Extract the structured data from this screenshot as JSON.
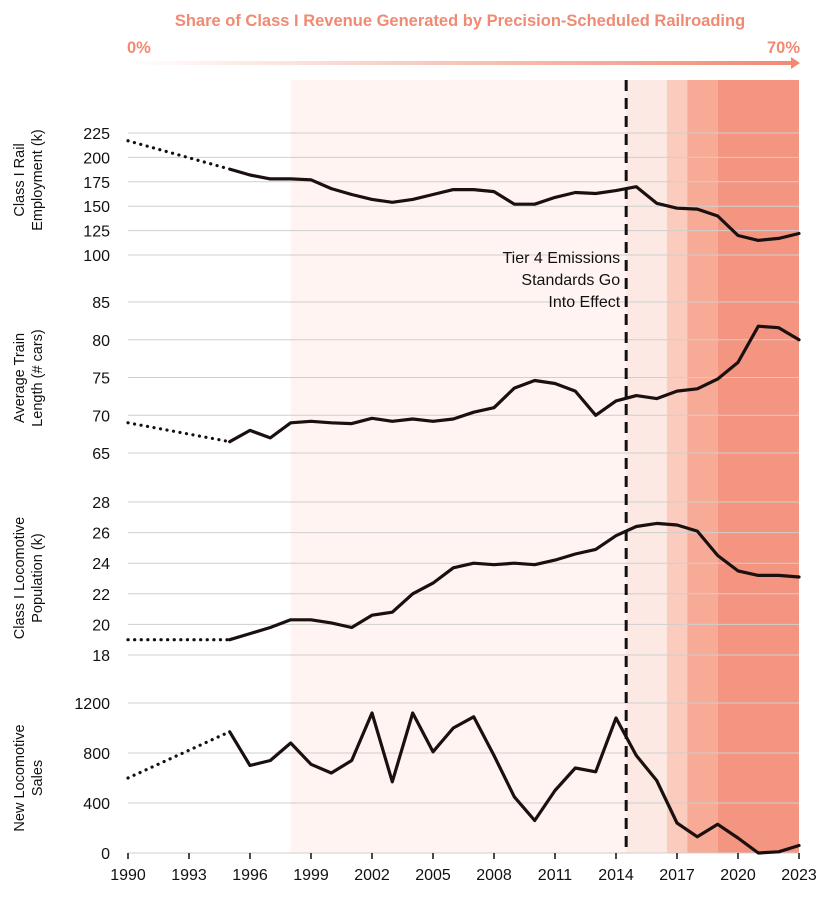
{
  "header": {
    "title": "Share of Class I Revenue Generated by Precision-Scheduled Railroading",
    "scale_min": "0%",
    "scale_max": "70%",
    "color": "#f08a72"
  },
  "annotation": {
    "lines": [
      "Tier 4 Emissions",
      "Standards Go",
      "Into Effect"
    ],
    "year": 2014.5
  },
  "psr_bands": [
    {
      "from": 1998,
      "to": 2014.5,
      "share_level": "low",
      "color": "#fff4f1"
    },
    {
      "from": 2014.5,
      "to": 2016.5,
      "share_level": "low",
      "color": "#fde9e3"
    },
    {
      "from": 2016.5,
      "to": 2017.5,
      "share_level": "medium",
      "color": "#fbcbbd"
    },
    {
      "from": 2017.5,
      "to": 2019,
      "share_level": "high",
      "color": "#f7ab96"
    },
    {
      "from": 2019,
      "to": 2023,
      "share_level": "highest",
      "color": "#f39580"
    }
  ],
  "chart_data": [
    {
      "type": "line",
      "ylabel": [
        "Class I Rail",
        "Employment (k)"
      ],
      "yticks": [
        "225",
        "200",
        "175",
        "150",
        "125",
        "100"
      ],
      "ylim": [
        100,
        225
      ],
      "dotted": [
        [
          1990,
          217
        ],
        [
          1995,
          188
        ]
      ],
      "x": [
        1995,
        1996,
        1997,
        1998,
        1999,
        2000,
        2001,
        2002,
        2003,
        2004,
        2005,
        2006,
        2007,
        2008,
        2009,
        2010,
        2011,
        2012,
        2013,
        2014,
        2015,
        2016,
        2017,
        2018,
        2019,
        2020,
        2021,
        2022,
        2023
      ],
      "values": [
        188,
        182,
        178,
        178,
        177,
        168,
        162,
        157,
        154,
        157,
        162,
        167,
        167,
        165,
        152,
        152,
        159,
        164,
        163,
        166,
        170,
        153,
        148,
        147,
        140,
        120,
        115,
        117,
        122
      ]
    },
    {
      "type": "line",
      "ylabel": [
        "Average Train",
        "Length (# cars)"
      ],
      "yticks": [
        "85",
        "80",
        "75",
        "70",
        "65"
      ],
      "ylim": [
        65,
        85
      ],
      "dotted": [
        [
          1990,
          69
        ],
        [
          1995,
          66.5
        ]
      ],
      "x": [
        1995,
        1996,
        1997,
        1998,
        1999,
        2000,
        2001,
        2002,
        2003,
        2004,
        2005,
        2006,
        2007,
        2008,
        2009,
        2010,
        2011,
        2012,
        2013,
        2014,
        2015,
        2016,
        2017,
        2018,
        2019,
        2020,
        2021,
        2022,
        2023
      ],
      "values": [
        66.5,
        68,
        67,
        69,
        69.2,
        69,
        68.9,
        69.6,
        69.2,
        69.5,
        69.2,
        69.5,
        70.4,
        71,
        73.6,
        74.6,
        74.2,
        73.2,
        70,
        71.9,
        72.6,
        72.2,
        73.2,
        73.5,
        74.8,
        77,
        81.8,
        81.6,
        80
      ]
    },
    {
      "type": "line",
      "ylabel": [
        "Class I Locomotive",
        "Population (k)"
      ],
      "yticks": [
        "28",
        "26",
        "24",
        "22",
        "20",
        "18"
      ],
      "ylim": [
        18,
        28
      ],
      "dotted": [
        [
          1990,
          19.0
        ],
        [
          1995,
          19.0
        ]
      ],
      "x": [
        1995,
        1996,
        1997,
        1998,
        1999,
        2000,
        2001,
        2002,
        2003,
        2004,
        2005,
        2006,
        2007,
        2008,
        2009,
        2010,
        2011,
        2012,
        2013,
        2014,
        2015,
        2016,
        2017,
        2018,
        2019,
        2020,
        2021,
        2022,
        2023
      ],
      "values": [
        19.0,
        19.4,
        19.8,
        20.3,
        20.3,
        20.1,
        19.8,
        20.6,
        20.8,
        22.0,
        22.7,
        23.7,
        24.0,
        23.9,
        24.0,
        23.9,
        24.2,
        24.6,
        24.9,
        25.8,
        26.4,
        26.6,
        26.5,
        26.1,
        24.5,
        23.5,
        23.2,
        23.2,
        23.1
      ]
    },
    {
      "type": "line",
      "ylabel": [
        "New Locomotive",
        "Sales"
      ],
      "yticks": [
        "1200",
        "800",
        "400",
        "0"
      ],
      "ylim": [
        0,
        1200
      ],
      "dotted": [
        [
          1990,
          600
        ],
        [
          1995,
          970
        ]
      ],
      "x": [
        1995,
        1996,
        1997,
        1998,
        1999,
        2000,
        2001,
        2002,
        2003,
        2004,
        2005,
        2006,
        2007,
        2008,
        2009,
        2010,
        2011,
        2012,
        2013,
        2014,
        2015,
        2016,
        2017,
        2018,
        2019,
        2020,
        2021,
        2022,
        2023
      ],
      "values": [
        970,
        700,
        740,
        880,
        710,
        640,
        740,
        1120,
        570,
        1120,
        810,
        1000,
        1090,
        780,
        450,
        260,
        500,
        680,
        650,
        1080,
        780,
        580,
        240,
        130,
        230,
        120,
        0,
        10,
        60
      ]
    }
  ],
  "x_axis": {
    "ticks": [
      "1990",
      "1993",
      "1996",
      "1999",
      "2002",
      "2005",
      "2008",
      "2011",
      "2014",
      "2017",
      "2020",
      "2023"
    ],
    "range": [
      1990,
      2023
    ]
  }
}
